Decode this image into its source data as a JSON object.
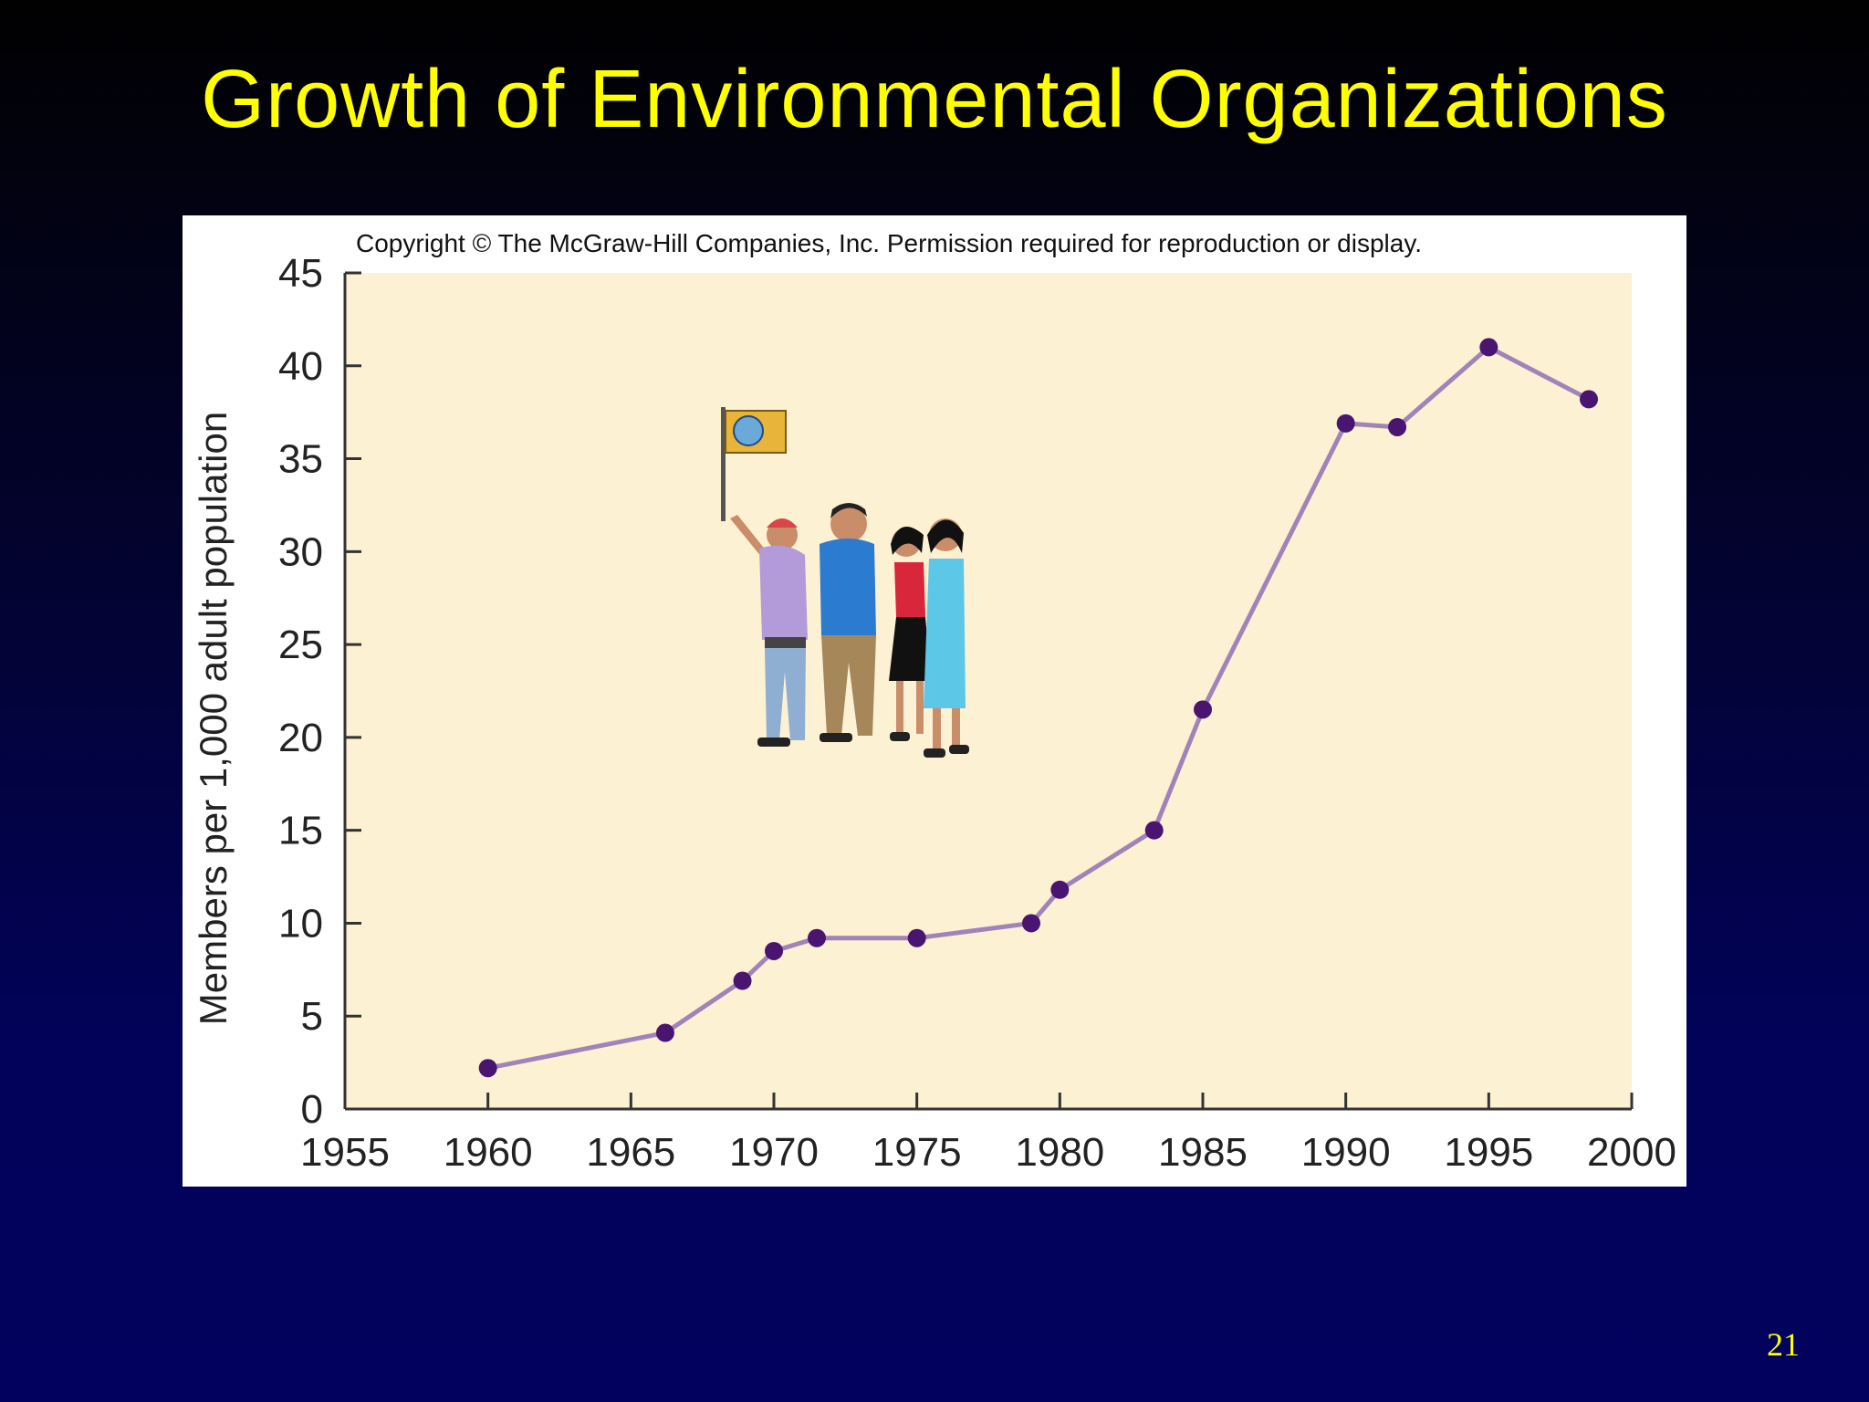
{
  "slide": {
    "title": "Growth of Environmental Organizations",
    "page_number": "21"
  },
  "figure": {
    "copyright": "Copyright © The McGraw-Hill Companies, Inc. Permission required for reproduction or display."
  },
  "colors": {
    "plot_background": "#fdf1d3",
    "line": "#a083b8",
    "marker": "#4a1570",
    "title_text": "#ffff00"
  },
  "chart_data": {
    "type": "line",
    "title": "",
    "xlabel": "",
    "ylabel": "Members per 1,000 adult population",
    "xlim": [
      1955,
      2000
    ],
    "ylim": [
      0,
      45
    ],
    "x_ticks": [
      1955,
      1960,
      1965,
      1970,
      1975,
      1980,
      1985,
      1990,
      1995,
      2000
    ],
    "y_ticks": [
      0,
      5,
      10,
      15,
      20,
      25,
      30,
      35,
      40,
      45
    ],
    "grid": false,
    "legend": "none",
    "series": [
      {
        "x": [
          1960,
          1966.2,
          1968.9,
          1970,
          1971.5,
          1975,
          1979,
          1980,
          1983.3,
          1985,
          1990,
          1991.8,
          1995,
          1998.5
        ],
        "y": [
          2.2,
          4.1,
          6.9,
          8.5,
          9.2,
          9.2,
          10,
          11.8,
          15,
          21.5,
          36.9,
          36.7,
          41,
          38.2
        ]
      }
    ]
  },
  "illustration": {
    "subject": "group of people with flag",
    "flag_color": "#e8b43a"
  }
}
